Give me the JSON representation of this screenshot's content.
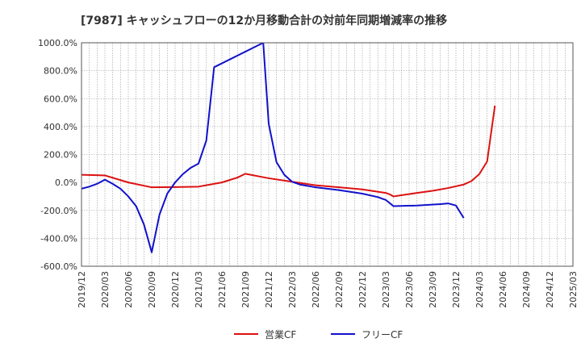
{
  "chart_data": {
    "type": "line",
    "title": "[7987]  キャッシュフローの12か月移動合計の対前年同期増減率の推移",
    "xlabel": "",
    "ylabel": "",
    "ylim": [
      -600,
      1000
    ],
    "yticks": [
      1000,
      800,
      600,
      400,
      200,
      0,
      -200,
      -400,
      -600
    ],
    "ytick_labels": [
      "1000.0%",
      "800.0%",
      "600.0%",
      "400.0%",
      "200.0%",
      "0.0%",
      "-200.0%",
      "-400.0%",
      "-600.0%"
    ],
    "x_start": "2019/12",
    "x_num_months": 63,
    "xtick_labels": [
      "2019/12",
      "2020/03",
      "2020/06",
      "2020/09",
      "2020/12",
      "2021/03",
      "2021/06",
      "2021/09",
      "2021/12",
      "2022/03",
      "2022/06",
      "2022/09",
      "2022/12",
      "2023/03",
      "2023/06",
      "2023/09",
      "2023/12",
      "2024/03",
      "2024/06",
      "2024/09",
      "2024/12",
      "2025/03"
    ],
    "grid": true,
    "legend_position": "bottom-center",
    "series": [
      {
        "name": "営業CF",
        "color": "#dd1111",
        "points": [
          [
            0,
            55
          ],
          [
            3,
            50
          ],
          [
            6,
            0
          ],
          [
            9,
            -35
          ],
          [
            12,
            -33
          ],
          [
            15,
            -30
          ],
          [
            18,
            0
          ],
          [
            20,
            35
          ],
          [
            21,
            62
          ],
          [
            24,
            30
          ],
          [
            27,
            5
          ],
          [
            30,
            -20
          ],
          [
            33,
            -35
          ],
          [
            36,
            -50
          ],
          [
            39,
            -75
          ],
          [
            39.5,
            -85
          ],
          [
            40,
            -100
          ],
          [
            41,
            -92
          ],
          [
            43,
            -75
          ],
          [
            45,
            -60
          ],
          [
            47,
            -40
          ],
          [
            49,
            -15
          ],
          [
            50,
            10
          ],
          [
            51,
            60
          ],
          [
            52,
            150
          ],
          [
            53,
            550
          ]
        ]
      },
      {
        "name": "フリーCF",
        "color": "#1111cc",
        "points": [
          [
            0,
            -45
          ],
          [
            1,
            -30
          ],
          [
            2,
            -10
          ],
          [
            3,
            20
          ],
          [
            4,
            -10
          ],
          [
            5,
            -45
          ],
          [
            6,
            -100
          ],
          [
            7,
            -170
          ],
          [
            8,
            -300
          ],
          [
            9,
            -500
          ],
          [
            10,
            -230
          ],
          [
            11,
            -80
          ],
          [
            12,
            0
          ],
          [
            13,
            60
          ],
          [
            14,
            105
          ],
          [
            15,
            135
          ],
          [
            16,
            300
          ],
          [
            17,
            825
          ],
          [
            23.3,
            1000
          ],
          [
            24,
            420
          ],
          [
            25,
            145
          ],
          [
            26,
            55
          ],
          [
            27,
            5
          ],
          [
            28,
            -15
          ],
          [
            30,
            -35
          ],
          [
            33,
            -55
          ],
          [
            36,
            -80
          ],
          [
            38,
            -105
          ],
          [
            39,
            -125
          ],
          [
            40,
            -170
          ],
          [
            43,
            -165
          ],
          [
            46,
            -155
          ],
          [
            47,
            -150
          ],
          [
            48,
            -165
          ],
          [
            49,
            -255
          ]
        ]
      }
    ]
  }
}
